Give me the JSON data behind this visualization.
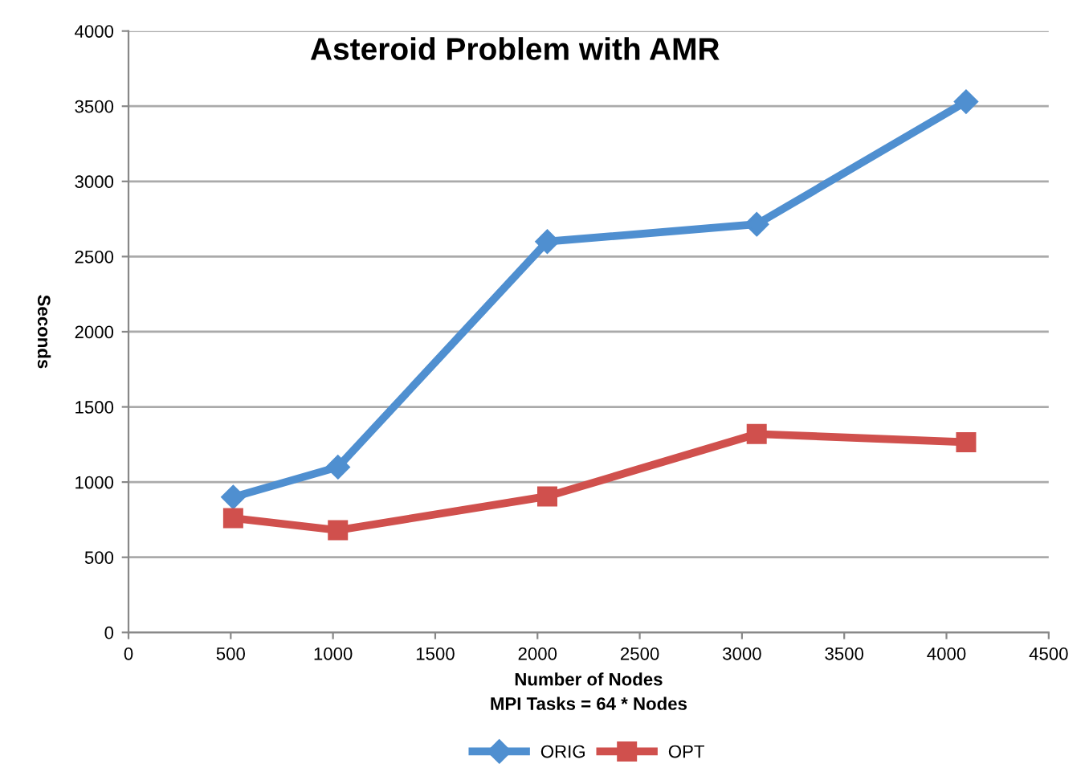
{
  "chart_data": {
    "type": "line",
    "title": "Asteroid Problem with AMR",
    "xlabel": "Number of Nodes\nMPI Tasks = 64 * Nodes",
    "ylabel": "Seconds",
    "x": [
      512,
      1024,
      2048,
      3072,
      4096
    ],
    "series": [
      {
        "name": "ORIG",
        "color": "#4f8fd0",
        "marker": "diamond",
        "values": [
          900,
          1100,
          2600,
          2715,
          3530
        ]
      },
      {
        "name": "OPT",
        "color": "#d0504d",
        "marker": "square",
        "values": [
          760,
          680,
          905,
          1320,
          1265
        ]
      }
    ],
    "xlim": [
      0,
      4500
    ],
    "xticks": [
      0,
      500,
      1000,
      1500,
      2000,
      2500,
      3000,
      3500,
      4000,
      4500
    ],
    "ylim": [
      0,
      4000
    ],
    "yticks": [
      0,
      500,
      1000,
      1500,
      2000,
      2500,
      3000,
      3500,
      4000
    ],
    "grid": "y",
    "legend": "bottom",
    "line_style": "solid"
  }
}
